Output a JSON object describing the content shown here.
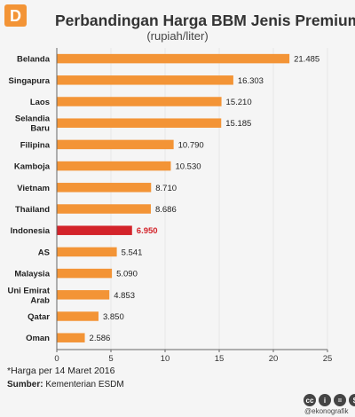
{
  "brand": {
    "logo_letter": "D",
    "handle": "@ekonografik"
  },
  "note": "*Harga per 14 Maret 2016",
  "source": {
    "label": "Sumber:",
    "text": "Kementerian ESDM"
  },
  "footer_icons": [
    "cc",
    "i",
    "=",
    "$"
  ],
  "colors": {
    "bar": "#f39436",
    "highlight": "#d3232a",
    "axis": "#666666",
    "grid": "#e8e8e8"
  },
  "chart_data": {
    "type": "bar",
    "orientation": "horizontal",
    "title": "Perbandingan Harga BBM Jenis Premium",
    "subtitle": "(rupiah/liter)",
    "categories": [
      "Belanda",
      "Singapura",
      "Laos",
      "Selandia Baru",
      "Filipina",
      "Kamboja",
      "Vietnam",
      "Thailand",
      "Indonesia",
      "AS",
      "Malaysia",
      "Uni Emirat Arab",
      "Qatar",
      "Oman"
    ],
    "category_lines": [
      [
        "Belanda"
      ],
      [
        "Singapura"
      ],
      [
        "Laos"
      ],
      [
        "Selandia",
        "Baru"
      ],
      [
        "Filipina"
      ],
      [
        "Kamboja"
      ],
      [
        "Vietnam"
      ],
      [
        "Thailand"
      ],
      [
        "Indonesia"
      ],
      [
        "AS"
      ],
      [
        "Malaysia"
      ],
      [
        "Uni Emirat",
        "Arab"
      ],
      [
        "Qatar"
      ],
      [
        "Oman"
      ]
    ],
    "values": [
      21.485,
      16.303,
      15.21,
      15.185,
      10.79,
      10.53,
      8.71,
      8.686,
      6.95,
      5.541,
      5.09,
      4.853,
      3.85,
      2.586
    ],
    "labels": [
      "21.485",
      "16.303",
      "15.210",
      "15.185",
      "10.790",
      "10.530",
      "8.710",
      "8.686",
      "6.950",
      "5.541",
      "5.090",
      "4.853",
      "3.850",
      "2.586"
    ],
    "highlight": "Indonesia",
    "xlim": [
      0,
      25
    ],
    "xticks": [
      0,
      5,
      10,
      15,
      20,
      25
    ],
    "grid": true
  }
}
